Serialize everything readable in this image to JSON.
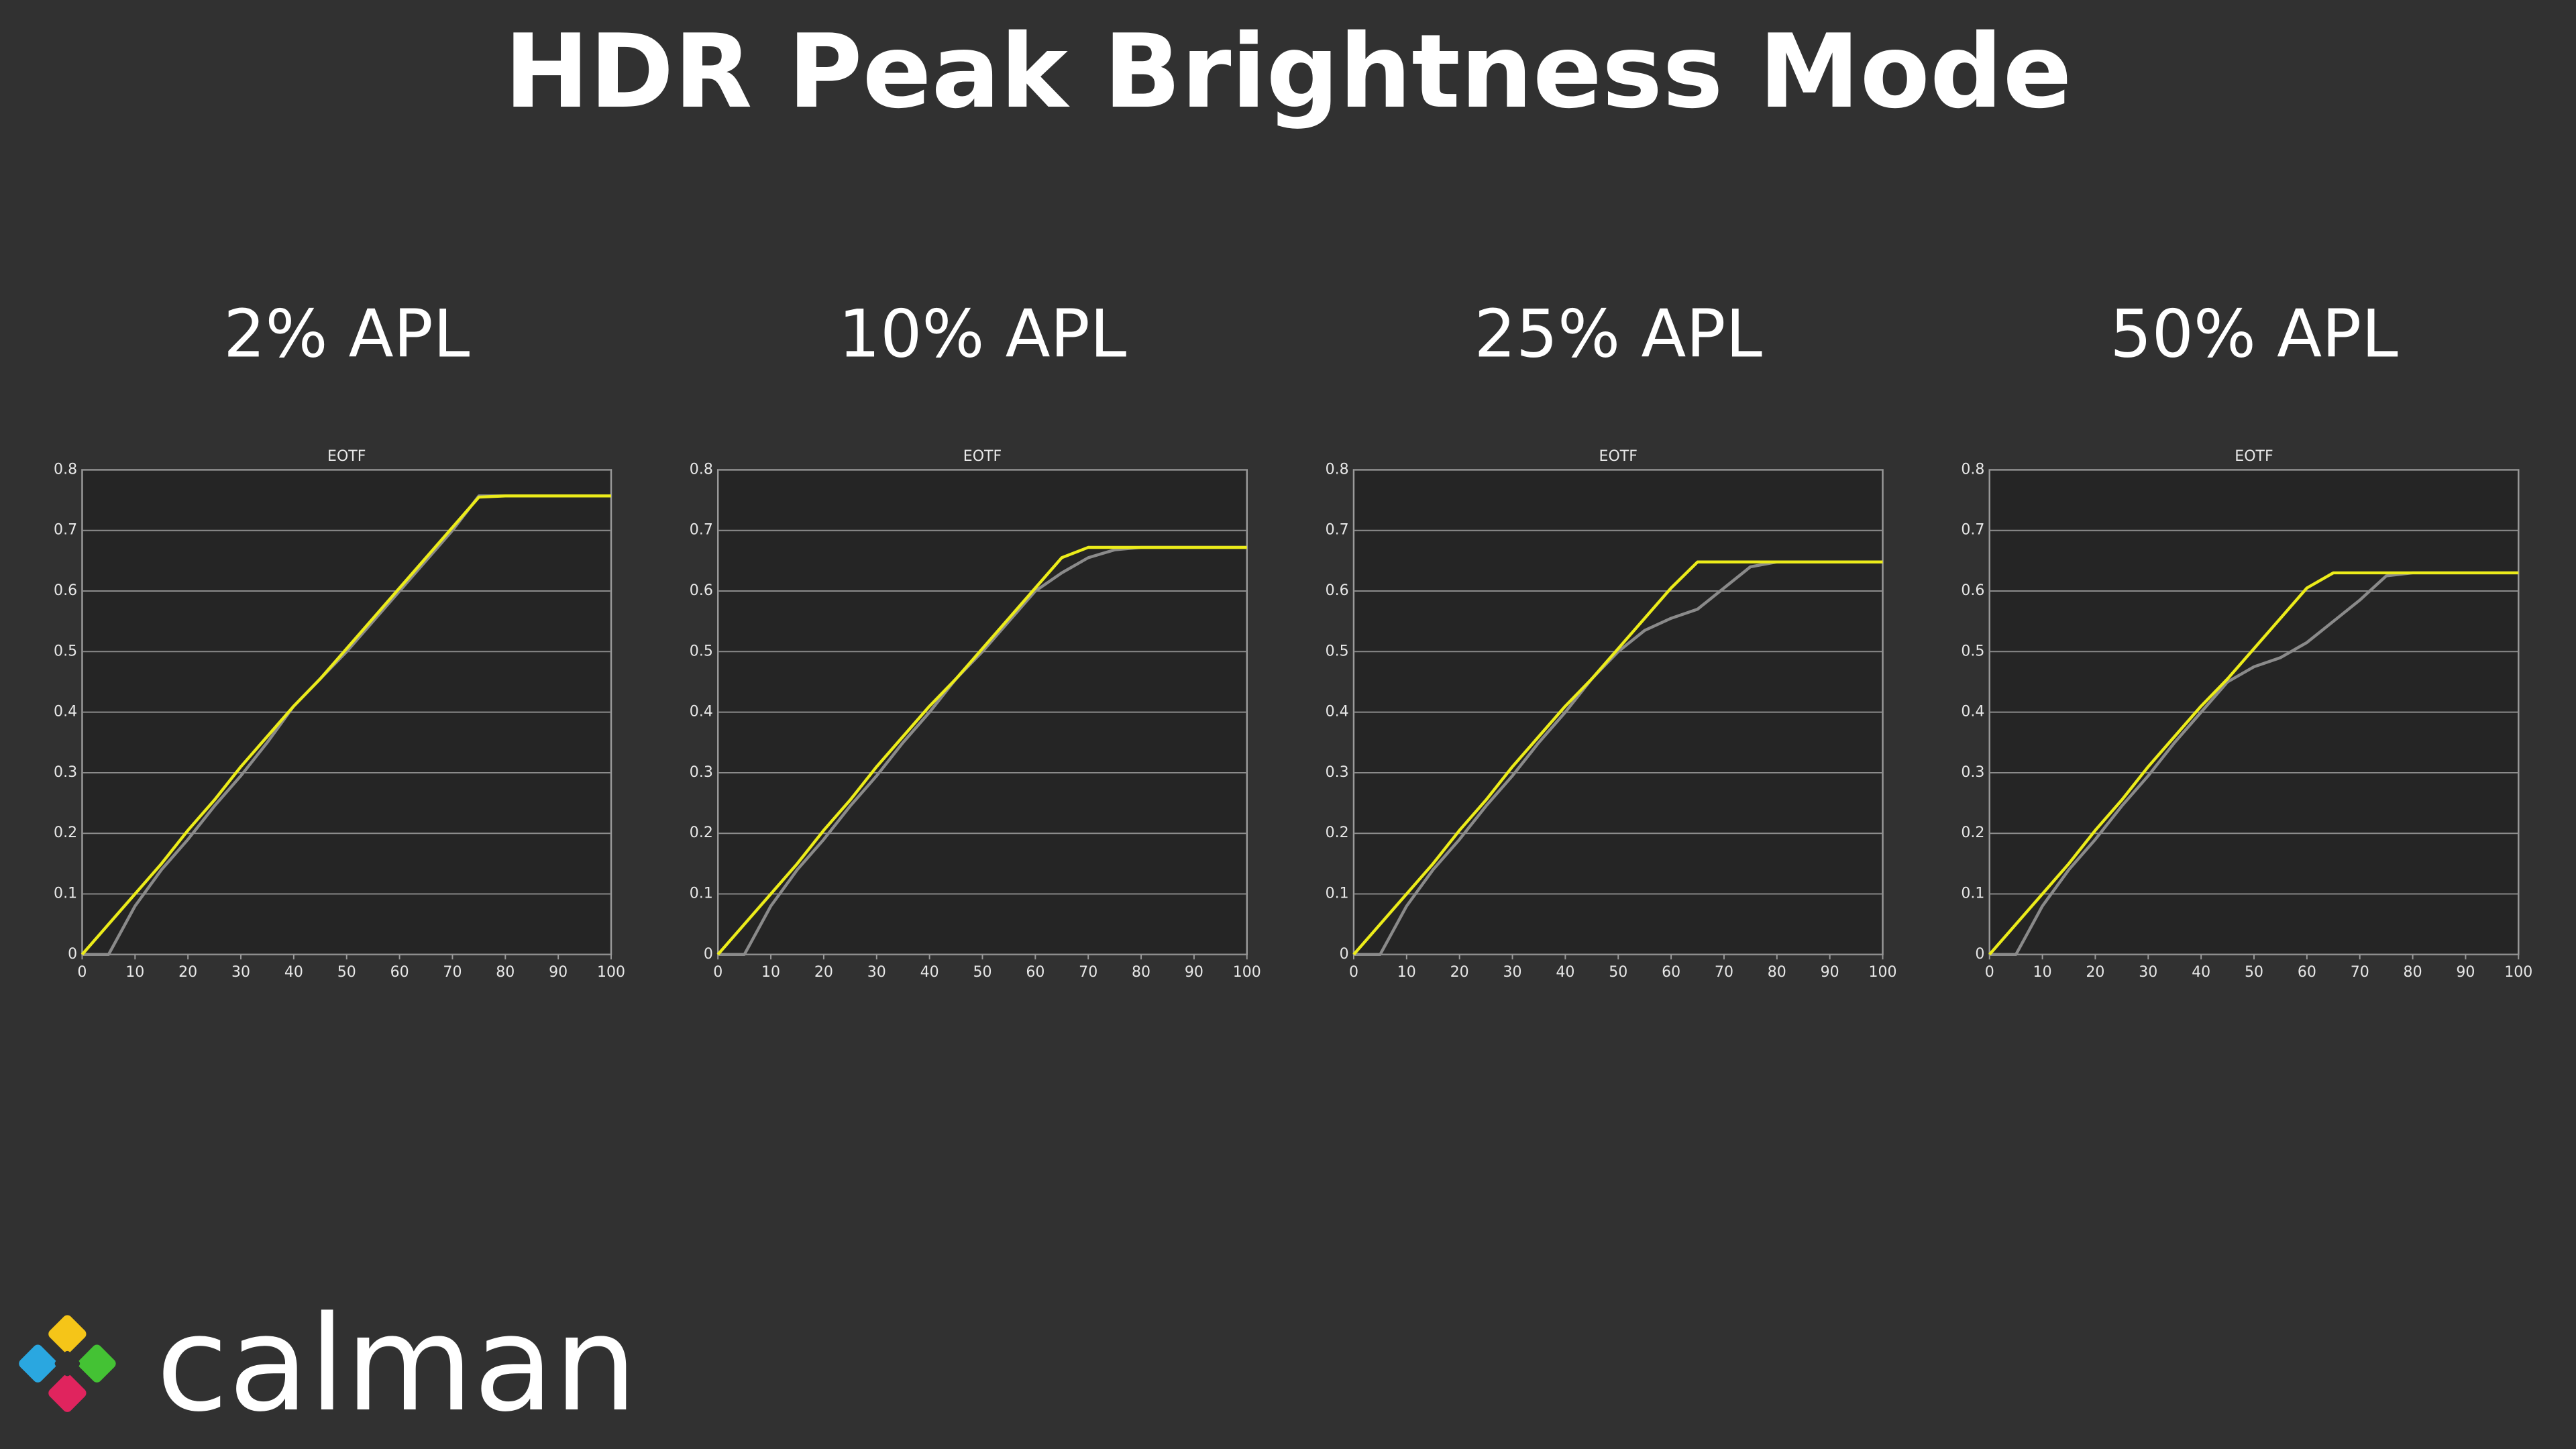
{
  "title": "HDR Peak Brightness Mode",
  "logo": "calman",
  "chart_data": [
    {
      "type": "line",
      "heading": "2% APL",
      "title": "EOTF",
      "x": [
        0,
        5,
        10,
        15,
        20,
        25,
        30,
        35,
        40,
        45,
        50,
        55,
        60,
        65,
        70,
        75,
        80,
        85,
        90,
        95,
        100
      ],
      "series": [
        {
          "color": "#ecec1a",
          "values": [
            0,
            0.05,
            0.1,
            0.15,
            0.205,
            0.255,
            0.31,
            0.36,
            0.41,
            0.455,
            0.505,
            0.555,
            0.605,
            0.655,
            0.705,
            0.755,
            0.757,
            0.757,
            0.757,
            0.757,
            0.757
          ]
        },
        {
          "color": "#8a8a8a",
          "values": [
            0,
            0,
            0.08,
            0.14,
            0.19,
            0.245,
            0.295,
            0.35,
            0.41,
            0.455,
            0.5,
            0.55,
            0.6,
            0.65,
            0.7,
            0.757,
            0.757,
            0.757,
            0.757,
            0.757,
            0.757
          ]
        }
      ],
      "xlim": [
        0,
        100
      ],
      "ylim": [
        0,
        0.8
      ],
      "xticks": [
        0,
        10,
        20,
        30,
        40,
        50,
        60,
        70,
        80,
        90,
        100
      ],
      "yticks": [
        0,
        0.1,
        0.2,
        0.3,
        0.4,
        0.5,
        0.6,
        0.7,
        0.8
      ],
      "grid": true
    },
    {
      "type": "line",
      "heading": "10% APL",
      "title": "EOTF",
      "x": [
        0,
        5,
        10,
        15,
        20,
        25,
        30,
        35,
        40,
        45,
        50,
        55,
        60,
        65,
        70,
        75,
        80,
        85,
        90,
        95,
        100
      ],
      "series": [
        {
          "color": "#ecec1a",
          "values": [
            0,
            0.05,
            0.1,
            0.15,
            0.205,
            0.255,
            0.31,
            0.36,
            0.41,
            0.455,
            0.505,
            0.555,
            0.605,
            0.655,
            0.672,
            0.672,
            0.672,
            0.672,
            0.672,
            0.672,
            0.672
          ]
        },
        {
          "color": "#8a8a8a",
          "values": [
            0,
            0,
            0.08,
            0.14,
            0.19,
            0.245,
            0.295,
            0.35,
            0.4,
            0.455,
            0.5,
            0.55,
            0.6,
            0.63,
            0.655,
            0.668,
            0.672,
            0.672,
            0.672,
            0.672,
            0.672
          ]
        }
      ],
      "xlim": [
        0,
        100
      ],
      "ylim": [
        0,
        0.8
      ],
      "xticks": [
        0,
        10,
        20,
        30,
        40,
        50,
        60,
        70,
        80,
        90,
        100
      ],
      "yticks": [
        0,
        0.1,
        0.2,
        0.3,
        0.4,
        0.5,
        0.6,
        0.7,
        0.8
      ],
      "grid": true
    },
    {
      "type": "line",
      "heading": "25% APL",
      "title": "EOTF",
      "x": [
        0,
        5,
        10,
        15,
        20,
        25,
        30,
        35,
        40,
        45,
        50,
        55,
        60,
        65,
        70,
        75,
        80,
        85,
        90,
        95,
        100
      ],
      "series": [
        {
          "color": "#ecec1a",
          "values": [
            0,
            0.05,
            0.1,
            0.15,
            0.205,
            0.255,
            0.31,
            0.36,
            0.41,
            0.455,
            0.505,
            0.555,
            0.605,
            0.648,
            0.648,
            0.648,
            0.648,
            0.648,
            0.648,
            0.648,
            0.648
          ]
        },
        {
          "color": "#8a8a8a",
          "values": [
            0,
            0,
            0.08,
            0.14,
            0.19,
            0.245,
            0.295,
            0.35,
            0.4,
            0.455,
            0.5,
            0.535,
            0.555,
            0.57,
            0.605,
            0.64,
            0.648,
            0.648,
            0.648,
            0.648,
            0.648
          ]
        }
      ],
      "xlim": [
        0,
        100
      ],
      "ylim": [
        0,
        0.8
      ],
      "xticks": [
        0,
        10,
        20,
        30,
        40,
        50,
        60,
        70,
        80,
        90,
        100
      ],
      "yticks": [
        0,
        0.1,
        0.2,
        0.3,
        0.4,
        0.5,
        0.6,
        0.7,
        0.8
      ],
      "grid": true
    },
    {
      "type": "line",
      "heading": "50% APL",
      "title": "EOTF",
      "x": [
        0,
        5,
        10,
        15,
        20,
        25,
        30,
        35,
        40,
        45,
        50,
        55,
        60,
        65,
        70,
        75,
        80,
        85,
        90,
        95,
        100
      ],
      "series": [
        {
          "color": "#ecec1a",
          "values": [
            0,
            0.05,
            0.1,
            0.15,
            0.205,
            0.255,
            0.31,
            0.36,
            0.41,
            0.455,
            0.505,
            0.555,
            0.605,
            0.63,
            0.63,
            0.63,
            0.63,
            0.63,
            0.63,
            0.63,
            0.63
          ]
        },
        {
          "color": "#8a8a8a",
          "values": [
            0,
            0,
            0.08,
            0.14,
            0.19,
            0.245,
            0.295,
            0.35,
            0.4,
            0.45,
            0.475,
            0.49,
            0.515,
            0.55,
            0.585,
            0.625,
            0.63,
            0.63,
            0.63,
            0.63,
            0.63
          ]
        }
      ],
      "xlim": [
        0,
        100
      ],
      "ylim": [
        0,
        0.8
      ],
      "xticks": [
        0,
        10,
        20,
        30,
        40,
        50,
        60,
        70,
        80,
        90,
        100
      ],
      "yticks": [
        0,
        0.1,
        0.2,
        0.3,
        0.4,
        0.5,
        0.6,
        0.7,
        0.8
      ],
      "grid": true
    }
  ]
}
